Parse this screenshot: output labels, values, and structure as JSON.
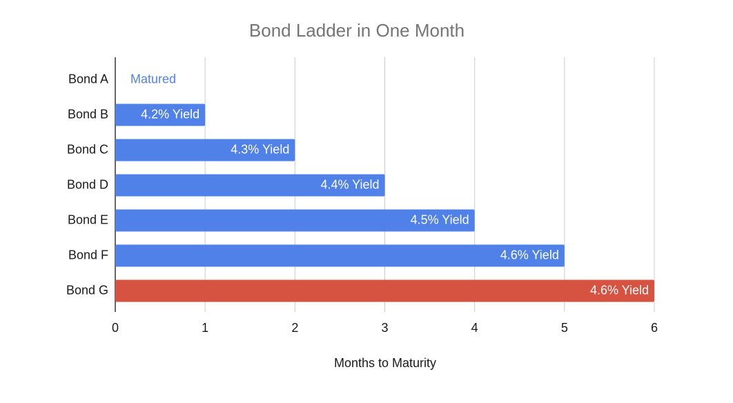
{
  "chart_data": {
    "type": "hbar",
    "title": "Bond Ladder in One Month",
    "x_label": "Months to Maturity",
    "categories": [
      "Bond A",
      "Bond B",
      "Bond C",
      "Bond D",
      "Bond E",
      "Bond F",
      "Bond G"
    ],
    "values": [
      0,
      1,
      2,
      3,
      4,
      5,
      6
    ],
    "value_labels": [
      "Matured",
      "4.2% Yield",
      "4.3% Yield",
      "4.4% Yield",
      "4.5% Yield",
      "4.6% Yield",
      "4.6% Yield"
    ],
    "colors": [
      "#4f81e8",
      "#4f81e8",
      "#4f81e8",
      "#4f81e8",
      "#4f81e8",
      "#4f81e8",
      "#d65241"
    ],
    "xlim": [
      0,
      6
    ],
    "xticks": [
      0,
      1,
      2,
      3,
      4,
      5,
      6
    ],
    "grid": true
  }
}
